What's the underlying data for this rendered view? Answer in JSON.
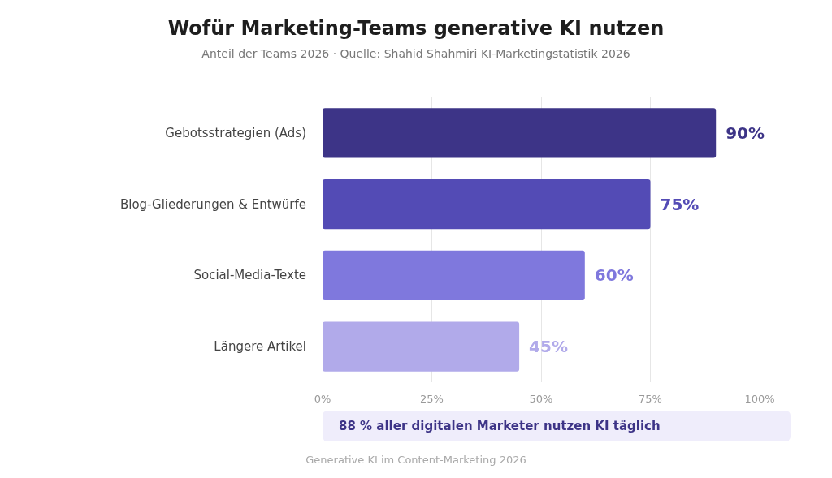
{
  "chart_data": {
    "type": "bar",
    "orientation": "horizontal",
    "title": "Wofür Marketing-Teams generative KI nutzen",
    "subtitle": "Anteil der Teams 2026 · Quelle: Shahid Shahmiri KI-Marketingstatistik 2026",
    "categories": [
      "Gebotsstrategien (Ads)",
      "Blog-Gliederungen & Entwürfe",
      "Social-Media-Texte",
      "Längere Artikel"
    ],
    "values": [
      90,
      75,
      60,
      45
    ],
    "colors": [
      "#3d3487",
      "#534bb5",
      "#7f78dd",
      "#b1aaea"
    ],
    "value_labels": [
      "90%",
      "75%",
      "60%",
      "45%"
    ],
    "xlim": [
      0,
      100
    ],
    "xticks": [
      {
        "value": 0,
        "label": "0%"
      },
      {
        "value": 25,
        "label": "25%"
      },
      {
        "value": 50,
        "label": "50%"
      },
      {
        "value": 75,
        "label": "75%"
      },
      {
        "value": 100,
        "label": "100%"
      }
    ],
    "grid": "x",
    "annotations": [
      "88 % aller digitalen Marketer nutzen KI täglich",
      "Generative KI im Content-Marketing 2026"
    ]
  }
}
